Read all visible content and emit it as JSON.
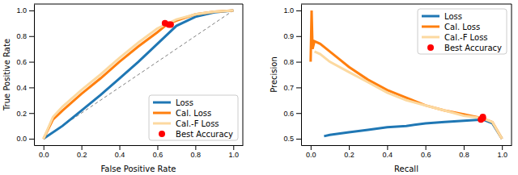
{
  "chart_data": [
    {
      "type": "line",
      "x_label": "False Positive Rate",
      "y_label": "True Positive Rate",
      "xlim": [
        -0.05,
        1.05
      ],
      "ylim": [
        -0.05,
        1.05
      ],
      "xticks": [
        {
          "value": 0,
          "label": "0.0"
        },
        {
          "value": 0.2,
          "label": "0.2"
        },
        {
          "value": 0.4,
          "label": "0.4"
        },
        {
          "value": 0.6,
          "label": "0.6"
        },
        {
          "value": 0.8,
          "label": "0.8"
        },
        {
          "value": 1,
          "label": "1.0"
        }
      ],
      "yticks": [
        {
          "value": 0,
          "label": "0.0"
        },
        {
          "value": 0.2,
          "label": "0.2"
        },
        {
          "value": 0.4,
          "label": "0.4"
        },
        {
          "value": 0.6,
          "label": "0.6"
        },
        {
          "value": 0.8,
          "label": "0.8"
        },
        {
          "value": 1,
          "label": "1.0"
        }
      ],
      "legend": "lower right",
      "series": [
        {
          "color": "#808080",
          "line_style": "dashed",
          "x": [
            0,
            1
          ],
          "values": [
            0,
            1
          ]
        },
        {
          "name": "Loss",
          "color": "#1f77b4",
          "x": [
            0,
            0.1,
            0.2,
            0.3,
            0.4,
            0.5,
            0.6,
            0.7,
            0.8,
            0.9,
            1
          ],
          "values": [
            0,
            0.1,
            0.22,
            0.34,
            0.47,
            0.6,
            0.74,
            0.88,
            0.95,
            0.985,
            1
          ]
        },
        {
          "name": "Cal. Loss",
          "color": "#ff7f0e",
          "x": [
            0,
            0.05,
            0.1,
            0.2,
            0.3,
            0.4,
            0.5,
            0.6,
            0.65,
            0.7,
            0.8,
            0.9,
            1
          ],
          "values": [
            0,
            0.15,
            0.22,
            0.35,
            0.47,
            0.6,
            0.72,
            0.83,
            0.89,
            0.92,
            0.97,
            0.99,
            1
          ]
        },
        {
          "name": "Cal.-F Loss",
          "color": "#fcd9a0",
          "x": [
            0,
            0.05,
            0.1,
            0.2,
            0.3,
            0.4,
            0.5,
            0.6,
            0.7,
            0.8,
            0.9,
            1
          ],
          "values": [
            0,
            0.17,
            0.25,
            0.38,
            0.5,
            0.63,
            0.75,
            0.86,
            0.93,
            0.97,
            0.99,
            1
          ]
        },
        {
          "name": "Best Accuracy",
          "type": "scatter",
          "marker": "circle",
          "color": "#ff0000",
          "x": [
            0.64,
            0.66,
            0.67
          ],
          "values": [
            0.9,
            0.89,
            0.89
          ]
        }
      ]
    },
    {
      "type": "line",
      "x_label": "Recall",
      "y_label": "Precision",
      "xlim": [
        -0.05,
        1.05
      ],
      "ylim": [
        0.475,
        1.025
      ],
      "xticks": [
        {
          "value": 0,
          "label": "0.0"
        },
        {
          "value": 0.2,
          "label": "0.2"
        },
        {
          "value": 0.4,
          "label": "0.4"
        },
        {
          "value": 0.6,
          "label": "0.6"
        },
        {
          "value": 0.8,
          "label": "0.8"
        },
        {
          "value": 1,
          "label": "1.0"
        }
      ],
      "yticks": [
        0.5,
        0.6,
        0.7,
        0.8,
        0.9,
        {
          "value": 1,
          "label": "1.0"
        }
      ],
      "legend": "upper right",
      "series": [
        {
          "name": "Loss",
          "color": "#1f77b4",
          "x": [
            0.07,
            0.1,
            0.2,
            0.3,
            0.4,
            0.5,
            0.6,
            0.7,
            0.8,
            0.9,
            0.95,
            1
          ],
          "values": [
            0.51,
            0.515,
            0.525,
            0.535,
            0.545,
            0.55,
            0.56,
            0.565,
            0.57,
            0.575,
            0.56,
            0.5
          ]
        },
        {
          "name": "Cal. Loss",
          "color": "#ff7f0e",
          "x": [
            0,
            0.005,
            0.01,
            0.02,
            0.05,
            0.1,
            0.15,
            0.2,
            0.3,
            0.4,
            0.5,
            0.6,
            0.7,
            0.8,
            0.9,
            0.95,
            1
          ],
          "values": [
            0.8,
            1,
            0.85,
            0.88,
            0.87,
            0.84,
            0.81,
            0.78,
            0.73,
            0.69,
            0.66,
            0.63,
            0.61,
            0.595,
            0.58,
            0.565,
            0.5
          ]
        },
        {
          "name": "Cal.-F Loss",
          "color": "#fcd9a0",
          "x": [
            0.02,
            0.05,
            0.1,
            0.2,
            0.3,
            0.4,
            0.5,
            0.6,
            0.7,
            0.8,
            0.9,
            0.95,
            1
          ],
          "values": [
            0.84,
            0.83,
            0.8,
            0.76,
            0.72,
            0.68,
            0.65,
            0.63,
            0.61,
            0.59,
            0.58,
            0.565,
            0.5
          ]
        },
        {
          "name": "Best Accuracy",
          "type": "scatter",
          "marker": "circle",
          "color": "#ff0000",
          "x": [
            0.89,
            0.9,
            0.9
          ],
          "values": [
            0.575,
            0.58,
            0.585
          ]
        }
      ]
    }
  ]
}
